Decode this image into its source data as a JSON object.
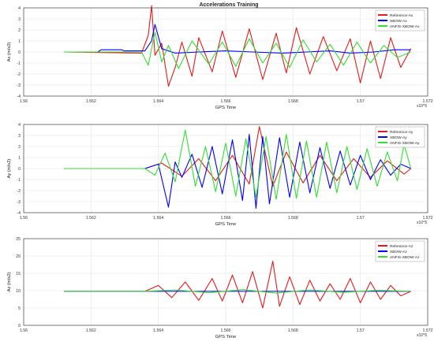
{
  "figure_title": "Accelerations Training",
  "colors": {
    "reference": "#e41a1c",
    "xbow": "#0000ff",
    "anfis": "#33dd33",
    "grid": "#e3e3e3",
    "axis": "#262626"
  },
  "chart_data": [
    {
      "type": "line",
      "title": "Accelerations Training",
      "xlabel": "GPS Time",
      "ylabel": "Ax (m/s2)",
      "x_exponent_label": "x10^5",
      "xlim": [
        1.56,
        1.572
      ],
      "ylim": [
        -4,
        4
      ],
      "xticks": [
        "1.56",
        "1.562",
        "1.564",
        "1.566",
        "1.568",
        "1.57",
        "1.572"
      ],
      "yticks": [
        "-4",
        "-3",
        "-2",
        "-1",
        "0",
        "1",
        "2",
        "3",
        "4"
      ],
      "grid": true,
      "legend_position": "top-right",
      "series": [
        {
          "name": "Reference-Ax",
          "color": "#e41a1c",
          "x": [
            1.5612,
            1.5635,
            1.5637,
            1.5638,
            1.5639,
            1.5641,
            1.5643,
            1.5645,
            1.5647,
            1.565,
            1.5652,
            1.5656,
            1.5659,
            1.5663,
            1.5667,
            1.5671,
            1.5675,
            1.5678,
            1.5681,
            1.5685,
            1.5689,
            1.5693,
            1.5697,
            1.57,
            1.5703,
            1.5706,
            1.5709,
            1.5712,
            1.5715
          ],
          "y": [
            0.0,
            -0.1,
            1.5,
            4.2,
            -0.3,
            0.8,
            -3.1,
            -1.4,
            0.9,
            -2.2,
            1.3,
            -1.8,
            1.9,
            -2.3,
            2.1,
            -2.5,
            1.7,
            -1.9,
            2.2,
            -2.0,
            1.4,
            -1.7,
            1.2,
            -2.8,
            1.0,
            -2.4,
            1.3,
            -1.4,
            0.3
          ]
        },
        {
          "name": "XBOW-Ax",
          "color": "#0000ff",
          "x": [
            1.5612,
            1.5622,
            1.5623,
            1.5629,
            1.563,
            1.5636,
            1.5638,
            1.5639,
            1.5641,
            1.5645,
            1.5652,
            1.566,
            1.5668,
            1.5677,
            1.5684,
            1.5691,
            1.5697,
            1.5704,
            1.571,
            1.5715
          ],
          "y": [
            0.0,
            0.0,
            0.2,
            0.2,
            0.1,
            0.1,
            1.0,
            2.5,
            0.3,
            -0.1,
            0.0,
            0.1,
            0.0,
            -0.1,
            0.0,
            0.1,
            -0.1,
            0.0,
            0.2,
            0.2
          ]
        },
        {
          "name": "ANFIS-XBOW-Ax",
          "color": "#33dd33",
          "x": [
            1.5612,
            1.5635,
            1.5637,
            1.5639,
            1.5641,
            1.5643,
            1.5646,
            1.565,
            1.5655,
            1.5659,
            1.5663,
            1.5667,
            1.5671,
            1.5675,
            1.5679,
            1.5683,
            1.5687,
            1.5691,
            1.5695,
            1.5699,
            1.5703,
            1.5707,
            1.5711,
            1.5715
          ],
          "y": [
            0.0,
            0.0,
            -1.2,
            1.8,
            -0.9,
            0.6,
            -1.5,
            1.0,
            -1.1,
            0.9,
            -1.3,
            1.2,
            -1.0,
            0.8,
            -1.4,
            1.1,
            -0.9,
            0.7,
            -1.2,
            0.9,
            -1.0,
            0.6,
            -0.5,
            0.0
          ]
        }
      ]
    },
    {
      "type": "line",
      "title": "",
      "xlabel": "GPS Time",
      "ylabel": "Ay (m/s2)",
      "x_exponent_label": "x10^5",
      "xlim": [
        1.56,
        1.572
      ],
      "ylim": [
        -4,
        4
      ],
      "xticks": [
        "1.56",
        "1.562",
        "1.564",
        "1.566",
        "1.568",
        "1.57",
        "1.572"
      ],
      "yticks": [
        "-4",
        "-3",
        "-2",
        "-1",
        "0",
        "1",
        "2",
        "3",
        "4"
      ],
      "grid": true,
      "legend_position": "top-right",
      "series": [
        {
          "name": "Reference-Ay",
          "color": "#e41a1c",
          "x": [
            1.5612,
            1.5636,
            1.5641,
            1.5647,
            1.5652,
            1.5657,
            1.5662,
            1.5667,
            1.567,
            1.5674,
            1.5678,
            1.5683,
            1.5688,
            1.5693,
            1.5698,
            1.5703,
            1.5708,
            1.5713,
            1.5715
          ],
          "y": [
            0.0,
            0.0,
            0.5,
            -0.7,
            0.9,
            -1.1,
            1.2,
            -1.4,
            3.8,
            -1.6,
            1.5,
            -1.3,
            1.2,
            -1.1,
            0.9,
            -0.8,
            0.7,
            -0.5,
            0.0
          ]
        },
        {
          "name": "XBOW-Ay",
          "color": "#0000ff",
          "x": [
            1.5612,
            1.5636,
            1.564,
            1.5643,
            1.5645,
            1.5647,
            1.565,
            1.5653,
            1.5656,
            1.5659,
            1.5662,
            1.5665,
            1.5667,
            1.5669,
            1.5671,
            1.5673,
            1.5676,
            1.5679,
            1.5682,
            1.5685,
            1.5688,
            1.5691,
            1.5694,
            1.5697,
            1.57,
            1.5703,
            1.5706,
            1.5709,
            1.5712,
            1.5715
          ],
          "y": [
            0.0,
            0.0,
            0.4,
            -3.5,
            0.6,
            -0.8,
            1.3,
            -1.7,
            2.0,
            -2.3,
            2.6,
            -2.9,
            3.1,
            -3.6,
            2.9,
            -3.2,
            2.8,
            -2.6,
            2.4,
            -2.2,
            1.9,
            -1.8,
            1.6,
            -1.5,
            1.2,
            -1.0,
            0.8,
            -0.6,
            0.4,
            0.0
          ]
        },
        {
          "name": "ANFIS-XBOW-Ay",
          "color": "#33dd33",
          "x": [
            1.5612,
            1.5636,
            1.5639,
            1.5642,
            1.5645,
            1.5648,
            1.5651,
            1.5654,
            1.5657,
            1.566,
            1.5663,
            1.5666,
            1.5669,
            1.5672,
            1.5675,
            1.5678,
            1.5681,
            1.5684,
            1.5687,
            1.569,
            1.5693,
            1.5696,
            1.5699,
            1.5702,
            1.5705,
            1.5708,
            1.5711,
            1.5713,
            1.5715
          ],
          "y": [
            0.0,
            0.0,
            -0.6,
            1.4,
            -1.2,
            3.5,
            -1.6,
            2.0,
            -2.1,
            2.3,
            -2.5,
            2.7,
            -2.6,
            2.9,
            -2.8,
            3.1,
            -2.7,
            2.5,
            -2.6,
            2.4,
            -2.2,
            2.0,
            -1.9,
            1.8,
            -1.6,
            1.5,
            -1.1,
            2.2,
            0.0
          ]
        }
      ]
    },
    {
      "type": "line",
      "title": "",
      "xlabel": "GPS Time",
      "ylabel": "Az (m/s2)",
      "x_exponent_label": "x10^5",
      "xlim": [
        1.56,
        1.572
      ],
      "ylim": [
        0,
        25
      ],
      "xticks": [
        "1.56",
        "1.562",
        "1.564",
        "1.566",
        "1.568",
        "1.57",
        "1.572"
      ],
      "yticks": [
        "0",
        "5",
        "10",
        "15",
        "20",
        "25"
      ],
      "grid": true,
      "legend_position": "top-right",
      "series": [
        {
          "name": "Reference-Az",
          "color": "#e41a1c",
          "x": [
            1.5612,
            1.5636,
            1.564,
            1.5644,
            1.5648,
            1.5652,
            1.5656,
            1.5659,
            1.5662,
            1.5665,
            1.5668,
            1.5671,
            1.5674,
            1.5676,
            1.5679,
            1.5682,
            1.5685,
            1.5688,
            1.5691,
            1.5694,
            1.5697,
            1.57,
            1.5703,
            1.5706,
            1.5709,
            1.5712,
            1.5715
          ],
          "y": [
            9.8,
            9.8,
            11.5,
            8.0,
            12.5,
            7.2,
            13.5,
            7.0,
            14.5,
            6.5,
            15.5,
            5.0,
            18.5,
            5.5,
            14.0,
            6.0,
            13.0,
            7.0,
            12.0,
            7.5,
            13.5,
            6.5,
            12.5,
            7.5,
            11.5,
            8.5,
            9.8
          ]
        },
        {
          "name": "XBOW-Az",
          "color": "#0000ff",
          "x": [
            1.5612,
            1.564,
            1.566,
            1.568,
            1.57,
            1.5715
          ],
          "y": [
            9.8,
            9.8,
            9.8,
            9.8,
            9.8,
            9.8
          ]
        },
        {
          "name": "ANFIS-XBOW-Az",
          "color": "#33dd33",
          "x": [
            1.5612,
            1.5636,
            1.5645,
            1.5655,
            1.5665,
            1.5675,
            1.5685,
            1.5695,
            1.5705,
            1.5715
          ],
          "y": [
            9.8,
            9.8,
            10.2,
            9.4,
            10.3,
            9.3,
            10.2,
            9.5,
            10.1,
            9.8
          ]
        }
      ]
    }
  ]
}
